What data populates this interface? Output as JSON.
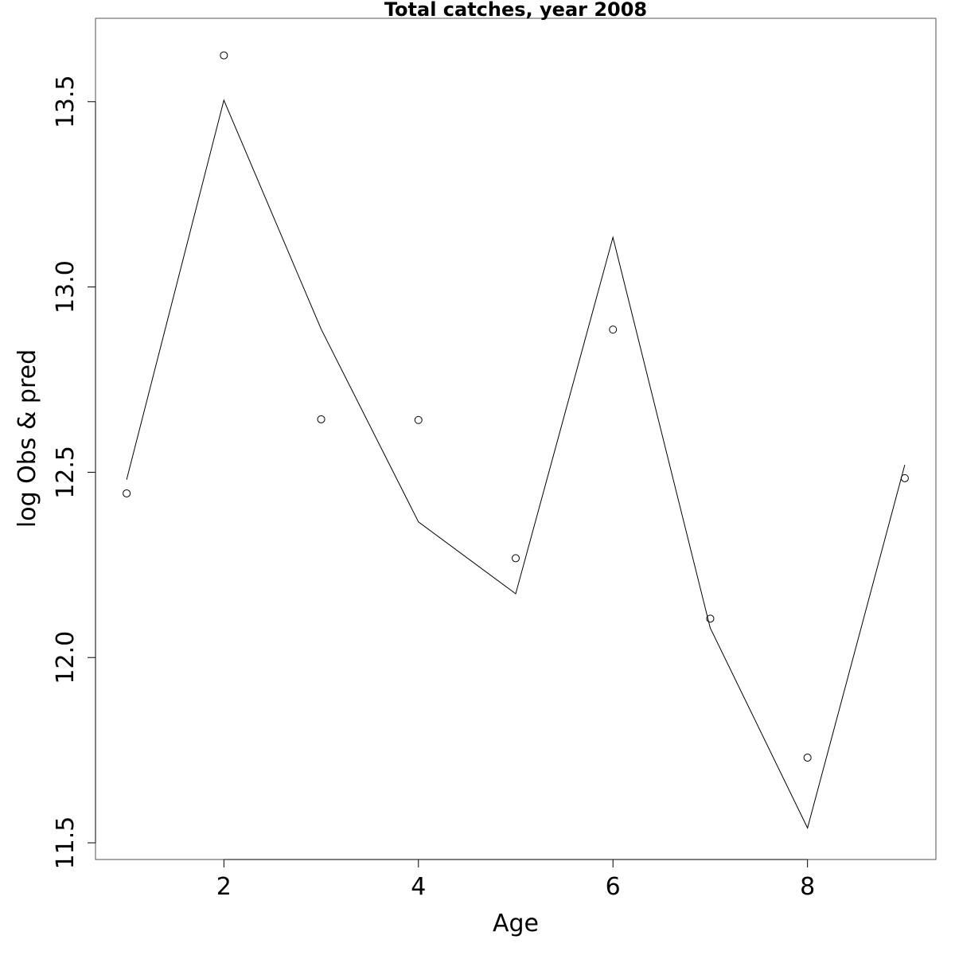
{
  "chart_data": {
    "type": "line",
    "title": "Total catches, year 2008",
    "xlabel": "Age",
    "ylabel": "log Obs & pred",
    "xlim": [
      0.68,
      9.32
    ],
    "ylim": [
      11.455,
      13.725
    ],
    "x_ticks": [
      2,
      4,
      6,
      8
    ],
    "x_tick_labels": [
      "2",
      "4",
      "6",
      "8"
    ],
    "y_ticks": [
      11.5,
      12.0,
      12.5,
      13.0,
      13.5
    ],
    "y_tick_labels": [
      "11.5",
      "12.0",
      "12.5",
      "13.0",
      "13.5"
    ],
    "grid": false,
    "series": [
      {
        "style": "points",
        "x": [
          1,
          2,
          3,
          4,
          5,
          6,
          7,
          8,
          9
        ],
        "values": [
          12.443,
          13.625,
          12.643,
          12.641,
          12.268,
          12.885,
          12.105,
          11.73,
          12.484
        ]
      },
      {
        "style": "line",
        "x": [
          1,
          2,
          3,
          4,
          5,
          6,
          7,
          8,
          9
        ],
        "values": [
          12.48,
          13.504,
          12.886,
          12.366,
          12.172,
          13.134,
          12.08,
          11.54,
          12.52
        ]
      }
    ]
  }
}
